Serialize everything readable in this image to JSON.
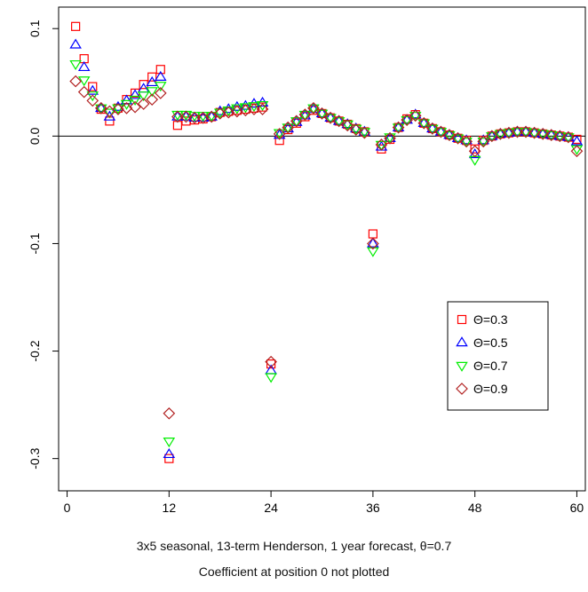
{
  "chart_data": {
    "type": "scatter",
    "title": "",
    "xlabel": "3x5 seasonal, 13-term Henderson, 1 year forecast, θ=0.7",
    "note": "Coefficient at position 0 not plotted",
    "xlim": [
      -1,
      61
    ],
    "ylim": [
      -0.33,
      0.12
    ],
    "xticks": [
      0,
      12,
      24,
      36,
      48,
      60
    ],
    "yticks": [
      -0.3,
      -0.2,
      -0.1,
      0.0,
      0.1
    ],
    "ytick_labels": [
      "-0.3",
      "-0.2",
      "-0.1",
      "0.0",
      "0.1"
    ],
    "hline": 0,
    "grid": false,
    "legend_position": "right-middle",
    "x": [
      1,
      2,
      3,
      4,
      5,
      6,
      7,
      8,
      9,
      10,
      11,
      12,
      13,
      14,
      15,
      16,
      17,
      18,
      19,
      20,
      21,
      22,
      23,
      24,
      25,
      26,
      27,
      28,
      29,
      30,
      31,
      32,
      33,
      34,
      35,
      36,
      37,
      38,
      39,
      40,
      41,
      42,
      43,
      44,
      45,
      46,
      47,
      48,
      49,
      50,
      51,
      52,
      53,
      54,
      55,
      56,
      57,
      58,
      59,
      60
    ],
    "series": [
      {
        "name": "Θ=0.3",
        "marker": "square",
        "color": "#ff0000",
        "values": [
          0.102,
          0.072,
          0.046,
          0.025,
          0.014,
          0.026,
          0.034,
          0.04,
          0.048,
          0.055,
          0.062,
          -0.3,
          0.01,
          0.014,
          0.015,
          0.016,
          0.018,
          0.022,
          0.023,
          0.024,
          0.025,
          0.026,
          0.027,
          -0.212,
          -0.004,
          0.006,
          0.012,
          0.018,
          0.024,
          0.021,
          0.017,
          0.014,
          0.011,
          0.007,
          0.004,
          -0.091,
          -0.012,
          -0.003,
          0.008,
          0.016,
          0.02,
          0.012,
          0.007,
          0.004,
          0.001,
          -0.002,
          -0.004,
          -0.012,
          -0.004,
          0.0,
          0.002,
          0.003,
          0.004,
          0.004,
          0.003,
          0.002,
          0.001,
          0.0,
          -0.001,
          -0.003
        ]
      },
      {
        "name": "Θ=0.5",
        "marker": "triangle-up",
        "color": "#0000ff",
        "values": [
          0.085,
          0.064,
          0.042,
          0.026,
          0.018,
          0.027,
          0.033,
          0.038,
          0.044,
          0.05,
          0.055,
          -0.296,
          0.018,
          0.018,
          0.017,
          0.017,
          0.018,
          0.023,
          0.025,
          0.027,
          0.028,
          0.03,
          0.031,
          -0.218,
          0.001,
          0.007,
          0.013,
          0.019,
          0.025,
          0.021,
          0.017,
          0.014,
          0.011,
          0.007,
          0.004,
          -0.1,
          -0.01,
          -0.002,
          0.008,
          0.015,
          0.02,
          0.012,
          0.007,
          0.004,
          0.001,
          -0.002,
          -0.004,
          -0.017,
          -0.004,
          0.0,
          0.002,
          0.003,
          0.004,
          0.004,
          0.003,
          0.002,
          0.001,
          0.0,
          -0.001,
          -0.005
        ]
      },
      {
        "name": "Θ=0.7",
        "marker": "triangle-down",
        "color": "#00ee00",
        "values": [
          0.067,
          0.052,
          0.038,
          0.026,
          0.022,
          0.026,
          0.03,
          0.034,
          0.038,
          0.042,
          0.047,
          -0.284,
          0.02,
          0.02,
          0.019,
          0.019,
          0.019,
          0.022,
          0.024,
          0.026,
          0.027,
          0.028,
          0.029,
          -0.224,
          0.003,
          0.008,
          0.014,
          0.02,
          0.026,
          0.021,
          0.017,
          0.014,
          0.011,
          0.007,
          0.004,
          -0.107,
          -0.008,
          -0.001,
          0.008,
          0.015,
          0.019,
          0.012,
          0.007,
          0.004,
          0.001,
          -0.002,
          -0.005,
          -0.022,
          -0.005,
          0.0,
          0.002,
          0.003,
          0.004,
          0.004,
          0.003,
          0.002,
          0.001,
          0.0,
          -0.001,
          -0.012
        ]
      },
      {
        "name": "Θ=0.9",
        "marker": "diamond",
        "color": "#b22222",
        "values": [
          0.051,
          0.041,
          0.033,
          0.026,
          0.023,
          0.025,
          0.026,
          0.027,
          0.03,
          0.034,
          0.04,
          -0.258,
          0.018,
          0.018,
          0.017,
          0.017,
          0.018,
          0.021,
          0.022,
          0.023,
          0.024,
          0.025,
          0.025,
          -0.21,
          0.002,
          0.008,
          0.014,
          0.02,
          0.026,
          0.021,
          0.017,
          0.014,
          0.01,
          0.006,
          0.003,
          -0.1,
          -0.008,
          -0.002,
          0.008,
          0.015,
          0.019,
          0.012,
          0.007,
          0.004,
          0.001,
          -0.002,
          -0.005,
          -0.014,
          -0.005,
          0.0,
          0.002,
          0.003,
          0.004,
          0.004,
          0.003,
          0.002,
          0.001,
          0.0,
          -0.001,
          -0.014
        ]
      }
    ]
  }
}
